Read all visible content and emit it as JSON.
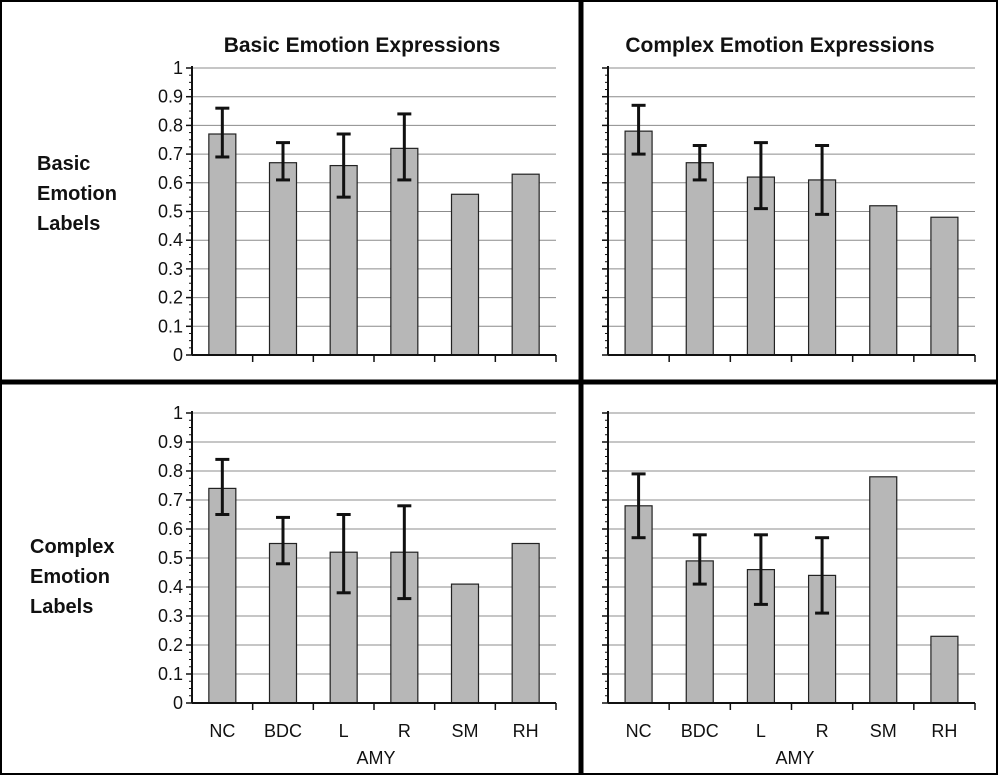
{
  "figure": {
    "column_titles": [
      "Basic Emotion Expressions",
      "Complex Emotion Expressions"
    ],
    "row_labels": [
      [
        "Basic",
        "Emotion",
        "Labels"
      ],
      [
        "Complex",
        "Emotion",
        "Labels"
      ]
    ],
    "group_label": "AMY"
  },
  "colors": {
    "bar_fill": "#b7b7b7",
    "bar_stroke": "#222222",
    "grid": "#8c8c8c",
    "axis": "#111111",
    "divider": "#000000"
  },
  "chart_data": [
    {
      "type": "bar",
      "id": "basic-labels-basic-expressions",
      "column": "Basic Emotion Expressions",
      "row": "Basic Emotion Labels",
      "categories": [
        "NC",
        "BDC",
        "L",
        "R",
        "SM",
        "RH"
      ],
      "values": [
        0.77,
        0.67,
        0.66,
        0.72,
        0.56,
        0.63
      ],
      "error_low": [
        0.69,
        0.61,
        0.55,
        0.61,
        null,
        null
      ],
      "error_high": [
        0.86,
        0.74,
        0.77,
        0.84,
        null,
        null
      ],
      "ylim": [
        0,
        1
      ],
      "yticks": [
        "0",
        "0.1",
        "0.2",
        "0.3",
        "0.4",
        "0.5",
        "0.6",
        "0.7",
        "0.8",
        "0.9",
        "1"
      ],
      "grid": true
    },
    {
      "type": "bar",
      "id": "basic-labels-complex-expressions",
      "column": "Complex Emotion Expressions",
      "row": "Basic Emotion Labels",
      "categories": [
        "NC",
        "BDC",
        "L",
        "R",
        "SM",
        "RH"
      ],
      "values": [
        0.78,
        0.67,
        0.62,
        0.61,
        0.52,
        0.48
      ],
      "error_low": [
        0.7,
        0.61,
        0.51,
        0.49,
        null,
        null
      ],
      "error_high": [
        0.87,
        0.73,
        0.74,
        0.73,
        null,
        null
      ],
      "ylim": [
        0,
        1
      ],
      "grid": true
    },
    {
      "type": "bar",
      "id": "complex-labels-basic-expressions",
      "column": "Basic Emotion Expressions",
      "row": "Complex Emotion Labels",
      "categories": [
        "NC",
        "BDC",
        "L",
        "R",
        "SM",
        "RH"
      ],
      "values": [
        0.74,
        0.55,
        0.52,
        0.52,
        0.41,
        0.55
      ],
      "error_low": [
        0.65,
        0.48,
        0.38,
        0.36,
        null,
        null
      ],
      "error_high": [
        0.84,
        0.64,
        0.65,
        0.68,
        null,
        null
      ],
      "ylim": [
        0,
        1
      ],
      "yticks": [
        "0",
        "0.1",
        "0.2",
        "0.3",
        "0.4",
        "0.5",
        "0.6",
        "0.7",
        "0.8",
        "0.9",
        "1"
      ],
      "grid": true
    },
    {
      "type": "bar",
      "id": "complex-labels-complex-expressions",
      "column": "Complex Emotion Expressions",
      "row": "Complex Emotion Labels",
      "categories": [
        "NC",
        "BDC",
        "L",
        "R",
        "SM",
        "RH"
      ],
      "values": [
        0.68,
        0.49,
        0.46,
        0.44,
        0.78,
        0.23
      ],
      "error_low": [
        0.57,
        0.41,
        0.34,
        0.31,
        null,
        null
      ],
      "error_high": [
        0.79,
        0.58,
        0.58,
        0.57,
        null,
        null
      ],
      "ylim": [
        0,
        1
      ],
      "grid": true
    }
  ]
}
